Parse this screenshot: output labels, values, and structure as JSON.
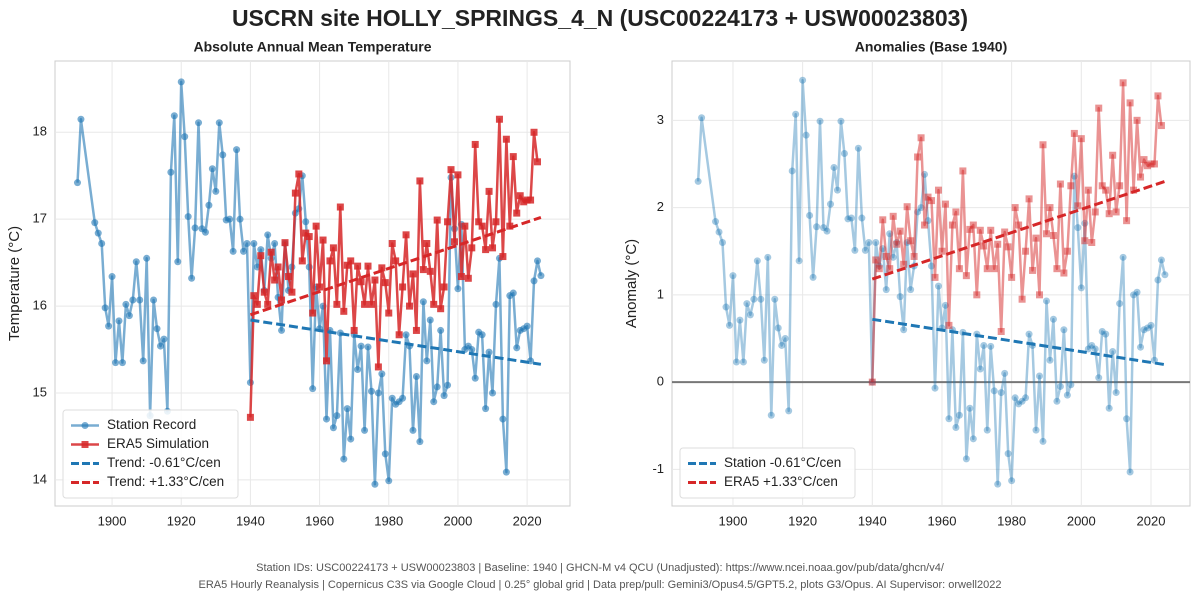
{
  "title": "USCRN site HOLLY_SPRINGS_4_N (USC00224173 + USW00023803)",
  "footer": [
    "Station IDs: USC00224173 + USW00023803  |  Baseline: 1940  |  GHCN-M v4 QCU (Unadjusted): https://www.ncei.noaa.gov/pub/data/ghcn/v4/",
    "ERA5 Hourly Reanalysis | Copernicus C3S via Google Cloud | 0.25° global grid | Data prep/pull: Gemini3/Opus4.5/GPT5.2, plots G3/Opus. AI Supervisor: orwell2022"
  ],
  "chart_data": [
    {
      "type": "line",
      "title": "Absolute Annual Mean Temperature",
      "ylabel": "Temperature (°C)",
      "xlim": [
        1883.5,
        2032.4
      ],
      "ylim": [
        13.7,
        18.82
      ],
      "xticks": [
        1900,
        1920,
        1940,
        1960,
        1980,
        2000,
        2020
      ],
      "yticks": [
        14,
        15,
        16,
        17,
        18
      ],
      "grid": true,
      "legend": "lower left",
      "series": [
        {
          "name": "Station Record",
          "color": "#1f77b4",
          "opacity": 0.6,
          "marker": "circle",
          "dash": false,
          "x": [
            1890,
            1891,
            1895,
            1896,
            1897,
            1898,
            1899,
            1900,
            1901,
            1902,
            1903,
            1904,
            1905,
            1906,
            1907,
            1908,
            1909,
            1910,
            1911,
            1912,
            1913,
            1914,
            1915,
            1916,
            1917,
            1918,
            1919,
            1920,
            1921,
            1922,
            1923,
            1924,
            1925,
            1926,
            1927,
            1928,
            1929,
            1930,
            1931,
            1932,
            1933,
            1934,
            1935,
            1936,
            1937,
            1938,
            1939,
            1940,
            1941,
            1942,
            1943,
            1944,
            1945,
            1946,
            1947,
            1948,
            1949,
            1950,
            1951,
            1952,
            1953,
            1954,
            1955,
            1956,
            1957,
            1958,
            1959,
            1960,
            1961,
            1962,
            1963,
            1964,
            1965,
            1966,
            1967,
            1968,
            1969,
            1970,
            1971,
            1972,
            1973,
            1974,
            1975,
            1976,
            1977,
            1978,
            1979,
            1980,
            1981,
            1982,
            1983,
            1984,
            1985,
            1986,
            1987,
            1988,
            1989,
            1990,
            1991,
            1992,
            1993,
            1994,
            1995,
            1996,
            1997,
            1998,
            1999,
            2000,
            2001,
            2002,
            2003,
            2004,
            2005,
            2006,
            2007,
            2008,
            2009,
            2010,
            2011,
            2012,
            2013,
            2014,
            2015,
            2016,
            2017,
            2018,
            2019,
            2020,
            2021,
            2022,
            2023,
            2024
          ],
          "values": [
            17.42,
            18.15,
            16.96,
            16.84,
            16.72,
            15.98,
            15.77,
            16.34,
            15.35,
            15.83,
            15.35,
            16.02,
            15.89,
            16.07,
            16.51,
            16.07,
            15.37,
            16.55,
            14.74,
            16.07,
            15.74,
            15.54,
            15.62,
            14.79,
            17.54,
            18.19,
            16.51,
            18.58,
            17.95,
            17.03,
            16.32,
            16.9,
            18.11,
            16.89,
            16.85,
            17.16,
            17.58,
            17.32,
            18.11,
            17.74,
            16.99,
            17.0,
            16.63,
            17.8,
            17.0,
            16.63,
            16.72,
            15.12,
            16.72,
            16.45,
            16.65,
            16.18,
            16.82,
            16.55,
            16.72,
            16.1,
            15.72,
            16.72,
            16.18,
            16.45,
            17.07,
            17.12,
            17.5,
            16.97,
            16.45,
            15.05,
            16.22,
            15.74,
            16.0,
            14.7,
            15.72,
            14.6,
            14.74,
            15.69,
            14.24,
            14.82,
            14.47,
            15.67,
            15.27,
            15.54,
            14.57,
            15.53,
            15.02,
            13.95,
            15.0,
            15.22,
            14.3,
            13.99,
            14.94,
            14.87,
            14.9,
            14.94,
            15.67,
            15.54,
            14.57,
            15.19,
            14.44,
            16.05,
            15.37,
            15.84,
            14.9,
            15.07,
            15.72,
            14.97,
            15.09,
            17.48,
            16.89,
            16.2,
            16.94,
            15.5,
            15.54,
            15.5,
            15.17,
            15.7,
            15.67,
            14.82,
            15.47,
            15.0,
            16.02,
            16.55,
            14.7,
            14.09,
            16.12,
            16.15,
            15.52,
            15.72,
            15.74,
            15.77,
            15.37,
            16.29,
            16.52,
            16.35
          ]
        },
        {
          "name": "ERA5 Simulation",
          "color": "#d62728",
          "opacity": 0.85,
          "marker": "square",
          "dash": false,
          "x": [
            1940,
            1941,
            1942,
            1943,
            1944,
            1945,
            1946,
            1947,
            1948,
            1949,
            1950,
            1951,
            1952,
            1953,
            1954,
            1955,
            1956,
            1957,
            1958,
            1959,
            1960,
            1961,
            1962,
            1963,
            1964,
            1965,
            1966,
            1967,
            1968,
            1969,
            1970,
            1971,
            1972,
            1973,
            1974,
            1975,
            1976,
            1977,
            1978,
            1979,
            1980,
            1981,
            1982,
            1983,
            1984,
            1985,
            1986,
            1987,
            1988,
            1989,
            1990,
            1991,
            1992,
            1993,
            1994,
            1995,
            1996,
            1997,
            1998,
            1999,
            2000,
            2001,
            2002,
            2003,
            2004,
            2005,
            2006,
            2007,
            2008,
            2009,
            2010,
            2011,
            2012,
            2013,
            2014,
            2015,
            2016,
            2017,
            2018,
            2019,
            2020,
            2021,
            2022,
            2023
          ],
          "values": [
            14.72,
            16.12,
            16.02,
            16.58,
            16.16,
            16.02,
            16.62,
            16.3,
            16.45,
            16.07,
            16.73,
            16.34,
            16.16,
            17.3,
            17.52,
            16.52,
            16.84,
            16.8,
            15.92,
            16.92,
            16.22,
            16.76,
            15.37,
            16.52,
            16.67,
            16.02,
            17.14,
            15.94,
            16.47,
            16.52,
            15.72,
            16.46,
            16.28,
            16.02,
            16.46,
            16.02,
            16.3,
            15.3,
            16.44,
            16.27,
            15.92,
            16.72,
            16.52,
            15.67,
            16.22,
            16.82,
            16.0,
            16.37,
            15.72,
            17.44,
            16.42,
            16.72,
            16.4,
            16.02,
            16.99,
            15.97,
            16.22,
            16.97,
            17.57,
            16.74,
            17.51,
            16.34,
            16.92,
            16.32,
            16.67,
            17.86,
            16.97,
            16.92,
            16.65,
            17.32,
            16.67,
            16.97,
            18.15,
            16.57,
            17.92,
            16.92,
            17.72,
            17.07,
            17.27,
            17.2,
            17.22,
            17.22,
            18.0,
            17.66
          ]
        },
        {
          "name": "Trend: -0.61°C/cen",
          "color": "#1f77b4",
          "opacity": 1,
          "marker": "none",
          "dash": true,
          "x": [
            1940,
            2024
          ],
          "values": [
            15.84,
            15.33
          ]
        },
        {
          "name": "Trend: +1.33°C/cen",
          "color": "#d62728",
          "opacity": 1,
          "marker": "none",
          "dash": true,
          "x": [
            1940,
            2024
          ],
          "values": [
            15.9,
            17.02
          ]
        }
      ]
    },
    {
      "type": "line",
      "title": "Anomalies (Base 1940)",
      "ylabel": "Anomaly (°C)",
      "xlim": [
        1882.5,
        2031.2
      ],
      "ylim": [
        -1.42,
        3.68
      ],
      "xticks": [
        1900,
        1920,
        1940,
        1960,
        1980,
        2000,
        2020
      ],
      "yticks": [
        -1,
        0,
        1,
        2,
        3
      ],
      "grid": true,
      "legend": "lower left",
      "reference_line": 0,
      "series": [
        {
          "color": "#1f77b4",
          "opacity": 0.4,
          "marker": "circle",
          "dash": false,
          "x": [
            1890,
            1891,
            1895,
            1896,
            1897,
            1898,
            1899,
            1900,
            1901,
            1902,
            1903,
            1904,
            1905,
            1906,
            1907,
            1908,
            1909,
            1910,
            1911,
            1912,
            1913,
            1914,
            1915,
            1916,
            1917,
            1918,
            1919,
            1920,
            1921,
            1922,
            1923,
            1924,
            1925,
            1926,
            1927,
            1928,
            1929,
            1930,
            1931,
            1932,
            1933,
            1934,
            1935,
            1936,
            1937,
            1938,
            1939,
            1940,
            1941,
            1942,
            1943,
            1944,
            1945,
            1946,
            1947,
            1948,
            1949,
            1950,
            1951,
            1952,
            1953,
            1954,
            1955,
            1956,
            1957,
            1958,
            1959,
            1960,
            1961,
            1962,
            1963,
            1964,
            1965,
            1966,
            1967,
            1968,
            1969,
            1970,
            1971,
            1972,
            1973,
            1974,
            1975,
            1976,
            1977,
            1978,
            1979,
            1980,
            1981,
            1982,
            1983,
            1984,
            1985,
            1986,
            1987,
            1988,
            1989,
            1990,
            1991,
            1992,
            1993,
            1994,
            1995,
            1996,
            1997,
            1998,
            1999,
            2000,
            2001,
            2002,
            2003,
            2004,
            2005,
            2006,
            2007,
            2008,
            2009,
            2010,
            2011,
            2012,
            2013,
            2014,
            2015,
            2016,
            2017,
            2018,
            2019,
            2020,
            2021,
            2022,
            2023,
            2024
          ],
          "values": [
            2.3,
            3.03,
            1.84,
            1.72,
            1.6,
            0.86,
            0.65,
            1.22,
            0.23,
            0.71,
            0.23,
            0.9,
            0.77,
            0.95,
            1.39,
            0.95,
            0.25,
            1.43,
            -0.38,
            0.95,
            0.62,
            0.42,
            0.5,
            -0.33,
            2.42,
            3.07,
            1.39,
            3.46,
            2.83,
            1.91,
            1.2,
            1.78,
            2.99,
            1.77,
            1.73,
            2.04,
            2.46,
            2.2,
            2.99,
            2.62,
            1.87,
            1.88,
            1.51,
            2.68,
            1.88,
            1.51,
            1.6,
            0,
            1.6,
            1.33,
            1.53,
            1.06,
            1.7,
            1.43,
            1.6,
            0.98,
            0.6,
            1.6,
            1.06,
            1.33,
            1.95,
            2.0,
            2.38,
            1.85,
            1.33,
            -0.07,
            1.1,
            0.62,
            0.88,
            -0.42,
            0.6,
            -0.52,
            -0.38,
            0.57,
            -0.88,
            -0.3,
            -0.65,
            0.55,
            0.15,
            0.42,
            -0.55,
            0.41,
            -0.1,
            -1.17,
            -0.12,
            0.1,
            -0.82,
            -1.13,
            -0.18,
            -0.25,
            -0.22,
            -0.18,
            0.55,
            0.42,
            -0.55,
            0.07,
            -0.68,
            0.93,
            0.25,
            0.72,
            -0.22,
            -0.05,
            0.6,
            -0.15,
            -0.03,
            2.36,
            1.77,
            1.08,
            1.82,
            0.38,
            0.42,
            0.38,
            0.05,
            0.58,
            0.55,
            -0.3,
            0.35,
            -0.12,
            0.9,
            1.43,
            -0.42,
            -1.03,
            1.0,
            1.03,
            0.4,
            0.6,
            0.62,
            0.65,
            0.25,
            1.17,
            1.4,
            1.23
          ]
        },
        {
          "color": "#d62728",
          "opacity": 0.5,
          "marker": "square",
          "dash": false,
          "x": [
            1940,
            1941,
            1942,
            1943,
            1944,
            1945,
            1946,
            1947,
            1948,
            1949,
            1950,
            1951,
            1952,
            1953,
            1954,
            1955,
            1956,
            1957,
            1958,
            1959,
            1960,
            1961,
            1962,
            1963,
            1964,
            1965,
            1966,
            1967,
            1968,
            1969,
            1970,
            1971,
            1972,
            1973,
            1974,
            1975,
            1976,
            1977,
            1978,
            1979,
            1980,
            1981,
            1982,
            1983,
            1984,
            1985,
            1986,
            1987,
            1988,
            1989,
            1990,
            1991,
            1992,
            1993,
            1994,
            1995,
            1996,
            1997,
            1998,
            1999,
            2000,
            2001,
            2002,
            2003,
            2004,
            2005,
            2006,
            2007,
            2008,
            2009,
            2010,
            2011,
            2012,
            2013,
            2014,
            2015,
            2016,
            2017,
            2018,
            2019,
            2020,
            2021,
            2022,
            2023
          ],
          "values": [
            0,
            1.4,
            1.3,
            1.86,
            1.44,
            1.3,
            1.9,
            1.58,
            1.73,
            1.35,
            2.01,
            1.62,
            1.44,
            2.58,
            2.8,
            1.8,
            2.12,
            2.08,
            1.2,
            2.2,
            1.5,
            2.04,
            0.65,
            1.8,
            1.95,
            1.3,
            2.42,
            1.22,
            1.75,
            1.8,
            1.0,
            1.74,
            1.56,
            1.3,
            1.74,
            1.3,
            1.58,
            0.58,
            1.72,
            1.55,
            1.2,
            2.0,
            1.8,
            0.95,
            1.5,
            2.1,
            1.28,
            1.65,
            1.0,
            2.72,
            1.7,
            2.0,
            1.68,
            1.3,
            2.27,
            1.25,
            1.5,
            2.25,
            2.85,
            2.02,
            2.79,
            1.62,
            2.2,
            1.6,
            1.95,
            3.14,
            2.25,
            2.2,
            1.93,
            2.6,
            1.95,
            2.25,
            3.43,
            1.85,
            3.2,
            2.2,
            3.0,
            2.35,
            2.55,
            2.48,
            2.5,
            2.5,
            3.28,
            2.94
          ]
        },
        {
          "name": "Station -0.61°C/cen",
          "color": "#1f77b4",
          "opacity": 1,
          "marker": "none",
          "dash": true,
          "x": [
            1940,
            2024
          ],
          "values": [
            0.72,
            0.2
          ]
        },
        {
          "name": "ERA5 +1.33°C/cen",
          "color": "#d62728",
          "opacity": 1,
          "marker": "none",
          "dash": true,
          "x": [
            1940,
            2024
          ],
          "values": [
            1.18,
            2.3
          ]
        }
      ]
    }
  ]
}
